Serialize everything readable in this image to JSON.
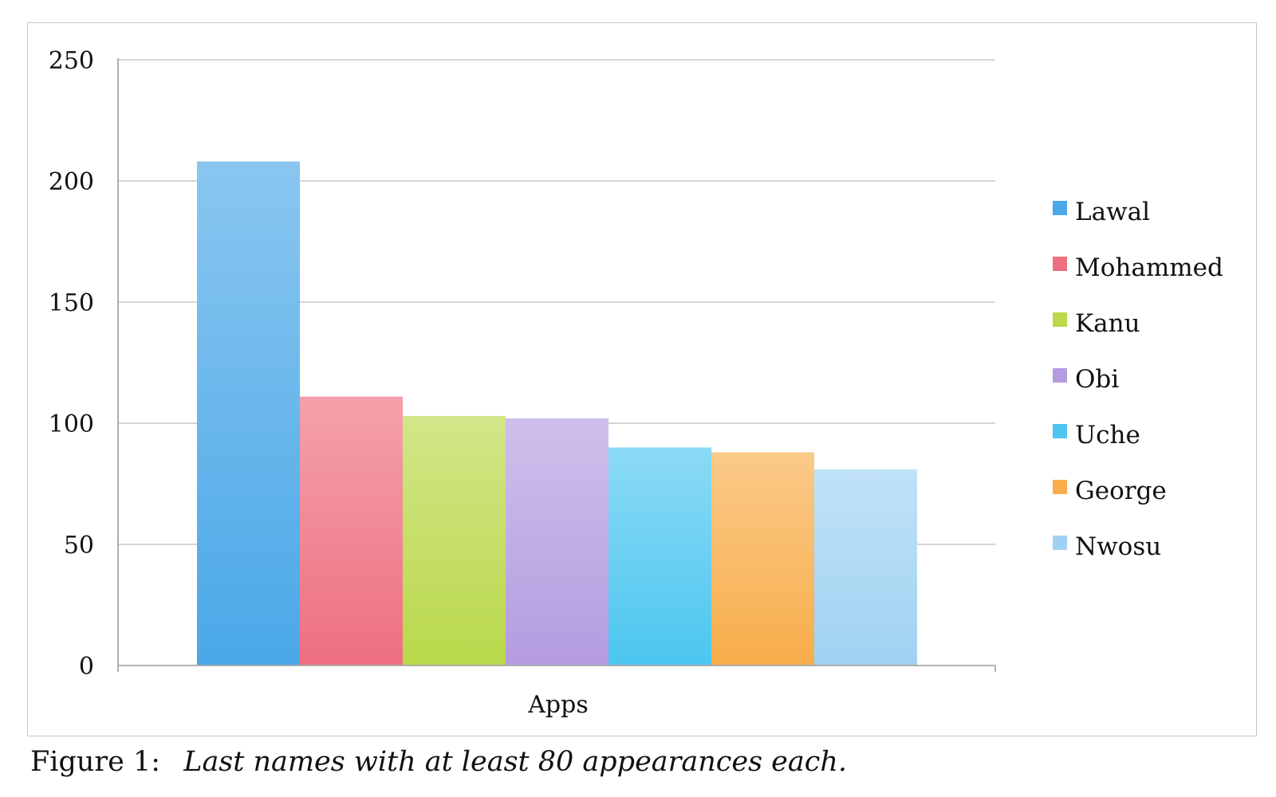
{
  "chart_data": {
    "type": "bar",
    "xlabel": "Apps",
    "ylabel": "",
    "title": "",
    "ylim": [
      0,
      250
    ],
    "yticks": [
      0,
      50,
      100,
      150,
      200,
      250
    ],
    "grid": true,
    "legend_position": "right",
    "categories": [
      "Apps"
    ],
    "series": [
      {
        "name": "Lawal",
        "values": [
          208
        ],
        "color": "#4aa8e8"
      },
      {
        "name": "Mohammed",
        "values": [
          111
        ],
        "color": "#ee6f7f"
      },
      {
        "name": "Kanu",
        "values": [
          103
        ],
        "color": "#b9d84a"
      },
      {
        "name": "Obi",
        "values": [
          102
        ],
        "color": "#b49ce0"
      },
      {
        "name": "Uche",
        "values": [
          90
        ],
        "color": "#4cc6f0"
      },
      {
        "name": "George",
        "values": [
          88
        ],
        "color": "#f8ad4a"
      },
      {
        "name": "Nwosu",
        "values": [
          81
        ],
        "color": "#9fd2f2"
      }
    ]
  },
  "caption": {
    "prefix": "Figure 1:",
    "text": "Last names with at least 80 appearances each."
  }
}
